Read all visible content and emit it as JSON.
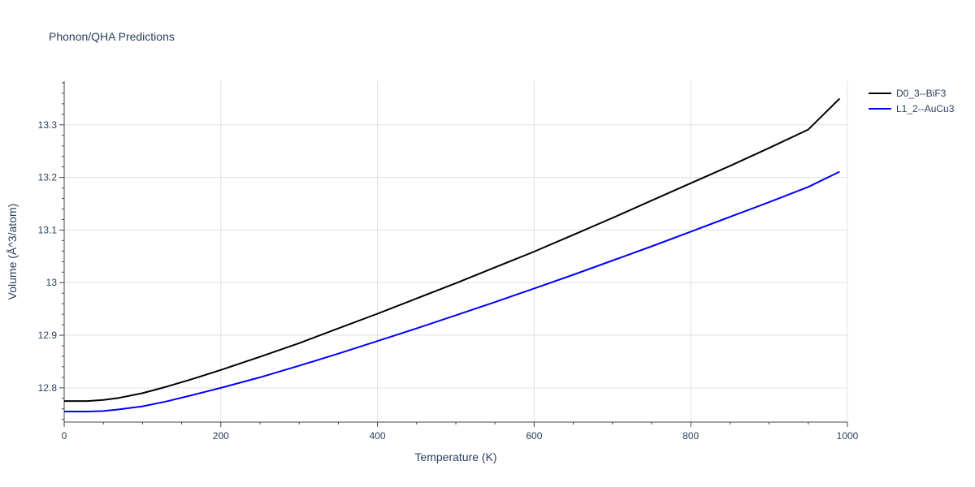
{
  "chart_data": {
    "type": "line",
    "title": "Phonon/QHA Predictions",
    "xlabel": "Temperature (K)",
    "ylabel": "Volume (Å^3/atom)",
    "xlim": [
      0,
      1000
    ],
    "ylim": [
      12.735,
      13.383
    ],
    "x_ticks": [
      0,
      200,
      400,
      600,
      800,
      1000
    ],
    "y_ticks": [
      12.8,
      12.9,
      13,
      13.1,
      13.2,
      13.3
    ],
    "x_tick_labels": [
      "0",
      "200",
      "400",
      "600",
      "800",
      "1000"
    ],
    "y_tick_labels": [
      "12.8",
      "12.9",
      "13",
      "13.1",
      "13.2",
      "13.3"
    ],
    "grid": true,
    "legend_position": "top-right",
    "series": [
      {
        "name": "D0_3--BiF3",
        "color": "#000000",
        "x": [
          0,
          30,
          50,
          70,
          100,
          130,
          160,
          200,
          250,
          300,
          350,
          400,
          450,
          500,
          550,
          600,
          650,
          700,
          750,
          800,
          850,
          900,
          950,
          990
        ],
        "y": [
          12.775,
          12.775,
          12.777,
          12.781,
          12.79,
          12.802,
          12.815,
          12.834,
          12.859,
          12.885,
          12.913,
          12.941,
          12.97,
          12.999,
          13.029,
          13.059,
          13.091,
          13.123,
          13.156,
          13.189,
          13.222,
          13.256,
          13.291,
          13.35
        ]
      },
      {
        "name": "L1_2--AuCu3",
        "color": "#0000ff",
        "x": [
          0,
          30,
          50,
          70,
          100,
          130,
          160,
          200,
          250,
          300,
          350,
          400,
          450,
          500,
          550,
          600,
          650,
          700,
          750,
          800,
          850,
          900,
          950,
          990
        ],
        "y": [
          12.755,
          12.755,
          12.756,
          12.759,
          12.765,
          12.774,
          12.785,
          12.8,
          12.82,
          12.842,
          12.865,
          12.889,
          12.913,
          12.938,
          12.963,
          12.989,
          13.015,
          13.042,
          13.069,
          13.097,
          13.125,
          13.153,
          13.182,
          13.211
        ]
      }
    ]
  }
}
